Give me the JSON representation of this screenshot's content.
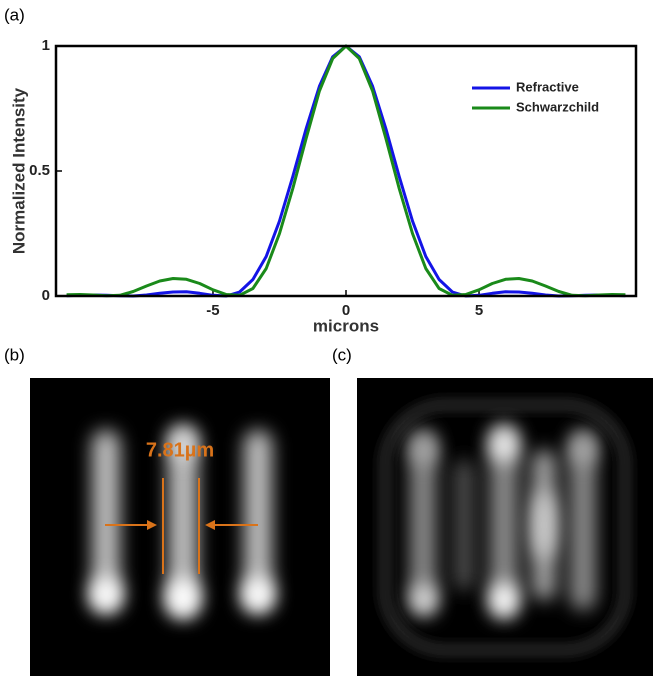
{
  "panel_labels": [
    "(a)",
    "(b)",
    "(c)"
  ],
  "annotation": "7.81µm",
  "chart_data": {
    "type": "line",
    "xlabel": "microns",
    "ylabel": "Normalized Intensity",
    "x": [
      -10.5,
      -10,
      -9.5,
      -9,
      -8.5,
      -8,
      -7.5,
      -7,
      -6.5,
      -6,
      -5.5,
      -5,
      -4.5,
      -4,
      -3.5,
      -3,
      -2.5,
      -2,
      -1.5,
      -1,
      -0.5,
      0,
      0.5,
      1,
      1.5,
      2,
      2.5,
      3,
      3.5,
      4,
      4.5,
      5,
      5.5,
      6,
      6.5,
      7,
      7.5,
      8,
      8.5,
      9,
      9.5,
      10,
      10.5
    ],
    "series": [
      {
        "name": "Refractive",
        "color": "#1414e6",
        "values": [
          0.001,
          0.003,
          0.004,
          0.003,
          0.001,
          0,
          0.004,
          0.011,
          0.016,
          0.017,
          0.011,
          0.003,
          0,
          0.016,
          0.066,
          0.158,
          0.3,
          0.478,
          0.669,
          0.839,
          0.957,
          1,
          0.957,
          0.839,
          0.669,
          0.478,
          0.3,
          0.158,
          0.066,
          0.016,
          0,
          0.003,
          0.011,
          0.017,
          0.016,
          0.011,
          0.004,
          0,
          0.001,
          0.003,
          0.004,
          0.003,
          0.001
        ]
      },
      {
        "name": "Schwarzchild",
        "color": "#1a8a1a",
        "values": [
          0.005,
          0.006,
          0.004,
          0.001,
          0.003,
          0.018,
          0.04,
          0.06,
          0.07,
          0.067,
          0.05,
          0.025,
          0.006,
          0.003,
          0.03,
          0.11,
          0.25,
          0.43,
          0.63,
          0.82,
          0.95,
          1,
          0.95,
          0.82,
          0.63,
          0.43,
          0.25,
          0.11,
          0.03,
          0.003,
          0.006,
          0.025,
          0.05,
          0.067,
          0.07,
          0.06,
          0.04,
          0.018,
          0.003,
          0.001,
          0.004,
          0.006,
          0.005
        ]
      }
    ],
    "xlim": [
      -10.9,
      10.9
    ],
    "ylim": [
      0,
      1
    ],
    "xticks": [
      -5,
      0,
      5
    ],
    "yticks": [
      0,
      0.5,
      1
    ],
    "grid": false,
    "legend": "upper right"
  }
}
